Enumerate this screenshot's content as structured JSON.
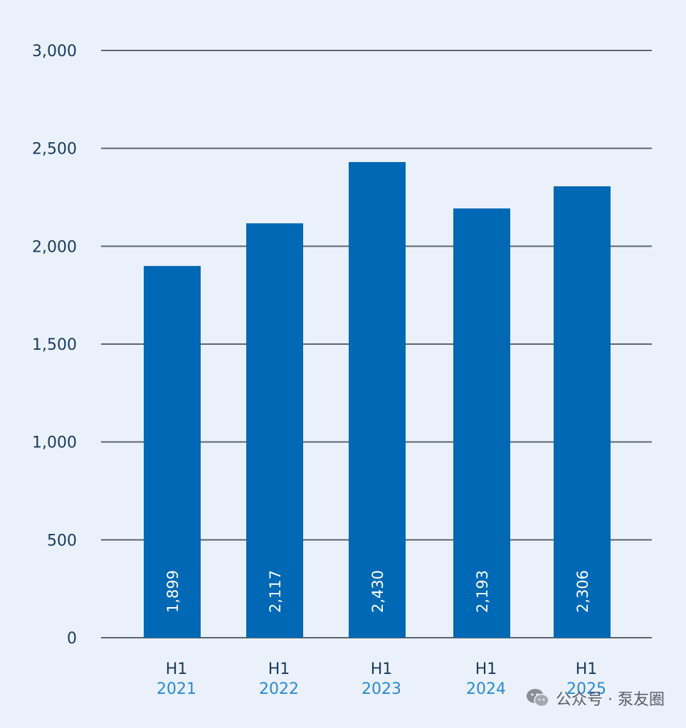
{
  "chart_data": {
    "type": "bar",
    "categories": [
      {
        "top": "H1",
        "bottom": "2021"
      },
      {
        "top": "H1",
        "bottom": "2022"
      },
      {
        "top": "H1",
        "bottom": "2023"
      },
      {
        "top": "H1",
        "bottom": "2024"
      },
      {
        "top": "H1",
        "bottom": "2025"
      }
    ],
    "values": [
      1899,
      2117,
      2430,
      2193,
      2306
    ],
    "value_labels": [
      "1,899",
      "2,117",
      "2,430",
      "2,193",
      "2,306"
    ],
    "ylim": [
      0,
      3000
    ],
    "yticks": [
      0,
      500,
      1000,
      1500,
      2000,
      2500,
      3000
    ],
    "ytick_labels": [
      "0",
      "500",
      "1,000",
      "1,500",
      "2,000",
      "2,500",
      "3,000"
    ],
    "grid": true,
    "title": "",
    "xlabel": "",
    "ylabel": "",
    "colors": {
      "bar": "#0068b4",
      "grid": "#5c6670",
      "axis_text": "#1b3a5c",
      "year_text": "#2a8ad4",
      "background": "#eaf1fa"
    }
  },
  "watermark": {
    "text": "公众号 · 泵友圈",
    "icon": "wechat-icon"
  }
}
